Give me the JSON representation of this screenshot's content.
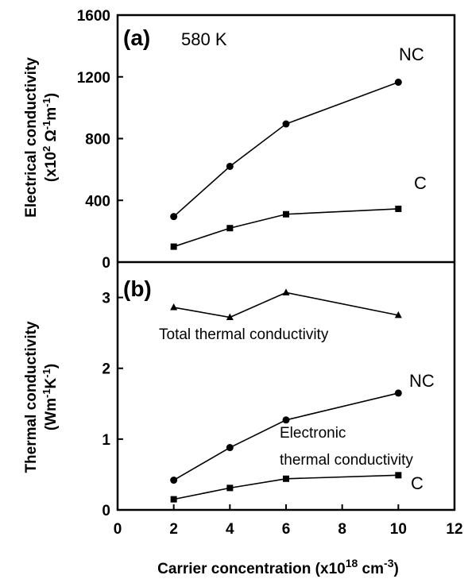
{
  "chart_data": [
    {
      "type": "line",
      "panel_label": "(a)",
      "annotation": "580 K",
      "ylabel_line1": "Electrical conductivity",
      "ylabel_line2_prefix": "(x10",
      "ylabel_line2_sup1": "2",
      "ylabel_line2_mid1": " Ω",
      "ylabel_line2_sup2": "-1",
      "ylabel_line2_mid2": "m",
      "ylabel_line2_sup3": "-1",
      "ylabel_line2_suffix": ")",
      "ylim": [
        0,
        1600
      ],
      "yticks": [
        "0",
        "400",
        "800",
        "1200",
        "1600"
      ],
      "grid": false,
      "series": [
        {
          "name": "NC",
          "marker": "circle",
          "x": [
            2,
            4,
            6,
            10
          ],
          "y": [
            295,
            620,
            895,
            1165
          ]
        },
        {
          "name": "C",
          "marker": "square",
          "x": [
            2,
            4,
            6,
            10
          ],
          "y": [
            100,
            220,
            310,
            345
          ]
        }
      ]
    },
    {
      "type": "line",
      "panel_label": "(b)",
      "ylabel_line1": "Thermal conductivity",
      "ylabel_line2_prefix": "(Wm",
      "ylabel_line2_sup1": "-1",
      "ylabel_line2_mid1": "K",
      "ylabel_line2_sup2": "-1",
      "ylabel_line2_suffix": ")",
      "xlabel_prefix": "Carrier concentration (x10",
      "xlabel_sup1": "18",
      "xlabel_mid": " cm",
      "xlabel_sup2": "-3",
      "xlabel_suffix": ")",
      "xlim": [
        0,
        12
      ],
      "xticks": [
        "0",
        "2",
        "4",
        "6",
        "8",
        "10",
        "12"
      ],
      "ylim": [
        0,
        3.5
      ],
      "yticks": [
        "0",
        "1",
        "2",
        "3"
      ],
      "grid": false,
      "series": [
        {
          "name": "Total thermal conductivity",
          "marker": "triangle",
          "x": [
            2,
            4,
            6,
            10
          ],
          "y": [
            2.86,
            2.72,
            3.07,
            2.75
          ]
        },
        {
          "name": "NC",
          "marker": "circle",
          "x": [
            2,
            4,
            6,
            10
          ],
          "y": [
            0.42,
            0.88,
            1.27,
            1.65
          ]
        },
        {
          "name": "C",
          "marker": "square",
          "x": [
            2,
            4,
            6,
            10
          ],
          "y": [
            0.15,
            0.31,
            0.44,
            0.49
          ]
        }
      ],
      "annotations": [
        "Electronic",
        "thermal conductivity"
      ]
    }
  ]
}
